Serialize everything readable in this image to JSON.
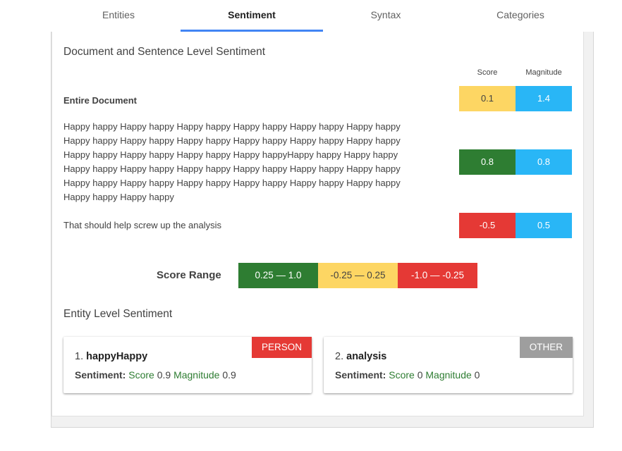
{
  "tabs": [
    {
      "label": "Entities",
      "active": false
    },
    {
      "label": "Sentiment",
      "active": true
    },
    {
      "label": "Syntax",
      "active": false
    },
    {
      "label": "Categories",
      "active": false
    }
  ],
  "doc_section": {
    "title": "Document and Sentence Level Sentiment",
    "score_header": "Score",
    "magnitude_header": "Magnitude",
    "rows": [
      {
        "text": "Entire Document",
        "score": "0.1",
        "magnitude": "1.4",
        "score_color": "#fdd663"
      },
      {
        "text": "Happy happy Happy happy Happy happy Happy happy Happy happy Happy happy Happy happy Happy happy Happy happy Happy happy Happy happy Happy happy Happy happy Happy happy Happy happy Happy happyHappy happy Happy happy Happy happy Happy happy Happy happy Happy happy Happy happy Happy happy Happy happy Happy happy Happy happy Happy happy Happy happy Happy happy Happy happy Happy happy",
        "score": "0.8",
        "magnitude": "0.8",
        "score_color": "#2e7d32"
      },
      {
        "text": "That should help screw up the analysis",
        "score": "-0.5",
        "magnitude": "0.5",
        "score_color": "#e53935"
      }
    ],
    "magnitude_color": "#29b6f6"
  },
  "score_range": {
    "label": "Score Range",
    "ranges": [
      {
        "text": "0.25 — 1.0",
        "color": "#2e7d32"
      },
      {
        "text": "-0.25 — 0.25",
        "color": "#fdd663"
      },
      {
        "text": "-1.0 — -0.25",
        "color": "#e53935"
      }
    ]
  },
  "entity_section": {
    "title": "Entity Level Sentiment",
    "entities": [
      {
        "index": "1.",
        "name": "happyHappy",
        "type": "PERSON",
        "type_color": "#e53935",
        "sentiment_label": "Sentiment:",
        "score_label": "Score",
        "score": "0.9",
        "magnitude_label": "Magnitude",
        "magnitude": "0.9"
      },
      {
        "index": "2.",
        "name": "analysis",
        "type": "OTHER",
        "type_color": "#9e9e9e",
        "sentiment_label": "Sentiment:",
        "score_label": "Score",
        "score": "0",
        "magnitude_label": "Magnitude",
        "magnitude": "0"
      }
    ]
  }
}
